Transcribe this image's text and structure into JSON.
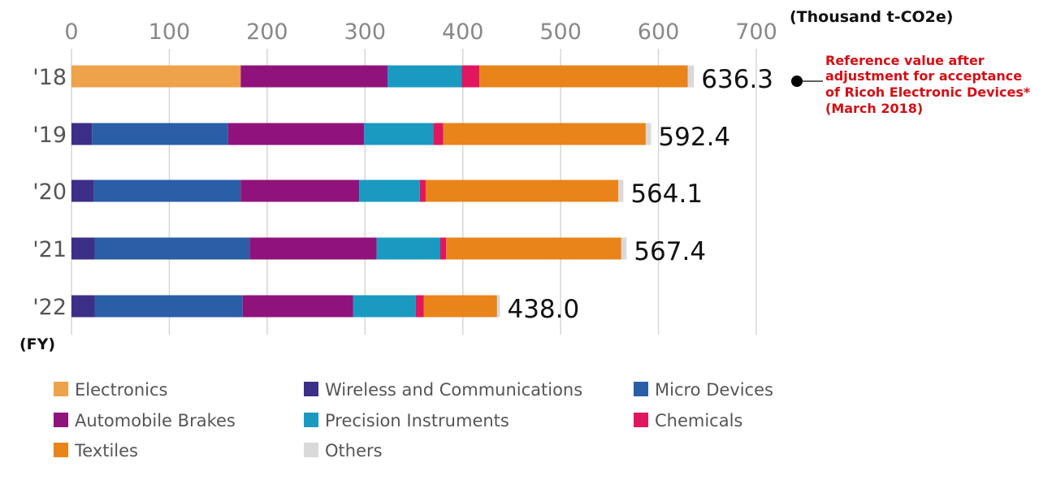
{
  "chart_data": {
    "type": "bar",
    "orientation": "horizontal",
    "stacked": true,
    "unit_label": "(Thousand t-CO2e)",
    "ylabel": "(FY)",
    "xlim": [
      0,
      700
    ],
    "xticks": [
      "0",
      "100",
      "200",
      "300",
      "400",
      "500",
      "600",
      "700"
    ],
    "categories": [
      "'18",
      "'19",
      "'20",
      "'21",
      "'22"
    ],
    "totals": [
      "636.3",
      "592.4",
      "564.1",
      "567.4",
      "438.0"
    ],
    "series": [
      {
        "name": "Electronics",
        "color": "#eea24a",
        "values": [
          173,
          0,
          0,
          0,
          0
        ]
      },
      {
        "name": "Wireless and Communications",
        "color": "#3b2f87",
        "values": [
          0,
          21,
          23,
          24,
          24
        ]
      },
      {
        "name": "Micro Devices",
        "color": "#2a5ea6",
        "values": [
          0,
          139,
          150,
          158,
          151
        ]
      },
      {
        "name": "Automobile Brakes",
        "color": "#90137c",
        "values": [
          150,
          139,
          121,
          130,
          113
        ]
      },
      {
        "name": "Precision Instruments",
        "color": "#1a9ac1",
        "values": [
          76,
          71,
          62,
          65,
          64
        ]
      },
      {
        "name": "Chemicals",
        "color": "#e0165e",
        "values": [
          18,
          10,
          6,
          6,
          8
        ]
      },
      {
        "name": "Textiles",
        "color": "#e8841a",
        "values": [
          213,
          207,
          197,
          179,
          75
        ]
      },
      {
        "name": "Others",
        "color": "#d9d9d9",
        "values": [
          6.3,
          5.4,
          5.1,
          5.4,
          3
        ]
      }
    ],
    "legend_order": [
      "Electronics",
      "Wireless and Communications",
      "Micro Devices",
      "Automobile Brakes",
      "Precision Instruments",
      "Chemicals",
      "Textiles",
      "Others"
    ],
    "annotation": {
      "category": "'18",
      "lines": [
        "Reference value after",
        "adjustment for acceptance",
        "of Ricoh Electronic Devices*",
        "(March 2018)"
      ]
    }
  }
}
